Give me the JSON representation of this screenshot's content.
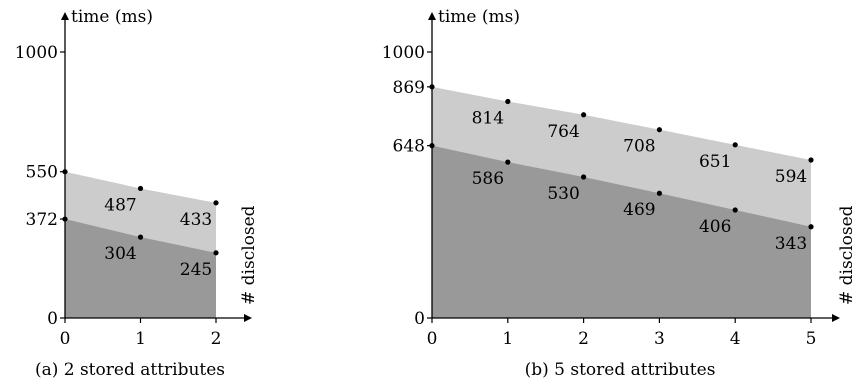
{
  "chart_data": [
    {
      "type": "area",
      "caption": "(a) 2 stored attributes",
      "ylabel": "time (ms)",
      "xlabel": "# disclosed",
      "xlim": [
        0,
        2
      ],
      "ylim": [
        0,
        1000
      ],
      "x_ticks": [
        0,
        1,
        2
      ],
      "y_ticks": [
        0,
        372,
        550,
        1000
      ],
      "x": [
        0,
        1,
        2
      ],
      "series": [
        {
          "values": [
            550,
            487,
            433
          ],
          "color": "#cccccc"
        },
        {
          "values": [
            372,
            304,
            245
          ],
          "color": "#999999"
        }
      ],
      "data_labels": [
        {
          "series": 0,
          "index": 1,
          "text": "487"
        },
        {
          "series": 0,
          "index": 2,
          "text": "433"
        },
        {
          "series": 1,
          "index": 1,
          "text": "304"
        },
        {
          "series": 1,
          "index": 2,
          "text": "245"
        }
      ]
    },
    {
      "type": "area",
      "caption": "(b) 5 stored attributes",
      "ylabel": "time (ms)",
      "xlabel": "# disclosed",
      "xlim": [
        0,
        5
      ],
      "ylim": [
        0,
        1000
      ],
      "x_ticks": [
        0,
        1,
        2,
        3,
        4,
        5
      ],
      "y_ticks": [
        0,
        648,
        869,
        1000
      ],
      "x": [
        0,
        1,
        2,
        3,
        4,
        5
      ],
      "series": [
        {
          "values": [
            869,
            814,
            764,
            708,
            651,
            594
          ],
          "color": "#cccccc"
        },
        {
          "values": [
            648,
            586,
            530,
            469,
            406,
            343
          ],
          "color": "#999999"
        }
      ],
      "data_labels": [
        {
          "series": 0,
          "index": 1,
          "text": "814"
        },
        {
          "series": 0,
          "index": 2,
          "text": "764"
        },
        {
          "series": 0,
          "index": 3,
          "text": "708"
        },
        {
          "series": 0,
          "index": 4,
          "text": "651"
        },
        {
          "series": 0,
          "index": 5,
          "text": "594"
        },
        {
          "series": 1,
          "index": 1,
          "text": "586"
        },
        {
          "series": 1,
          "index": 2,
          "text": "530"
        },
        {
          "series": 1,
          "index": 3,
          "text": "469"
        },
        {
          "series": 1,
          "index": 4,
          "text": "406"
        },
        {
          "series": 1,
          "index": 5,
          "text": "343"
        }
      ]
    }
  ]
}
